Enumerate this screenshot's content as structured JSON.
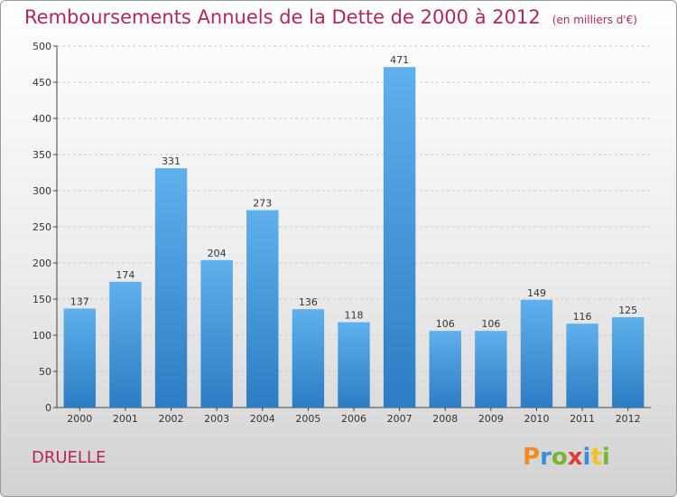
{
  "header": {
    "title": "Remboursements Annuels de la Dette de 2000 à 2012",
    "subtitle": "(en milliers d'€)"
  },
  "commune": "DRUELLE",
  "logo": {
    "letters": [
      "P",
      "r",
      "o",
      "x",
      "i",
      "t",
      "i"
    ],
    "colors": [
      "#f28c1f",
      "#3a8fd6",
      "#78b62c",
      "#e23b3b",
      "#3a8fd6",
      "#f2c21f",
      "#78b62c"
    ]
  },
  "chart_data": {
    "type": "bar",
    "title": "Remboursements Annuels de la Dette de 2000 à 2012",
    "ylabel": "",
    "xlabel": "",
    "categories": [
      "2000",
      "2001",
      "2002",
      "2003",
      "2004",
      "2005",
      "2006",
      "2007",
      "2008",
      "2009",
      "2010",
      "2011",
      "2012"
    ],
    "values": [
      137,
      174,
      331,
      204,
      273,
      136,
      118,
      471,
      106,
      106,
      149,
      116,
      125
    ],
    "ylim": [
      0,
      500
    ],
    "yticks": [
      0,
      50,
      100,
      150,
      200,
      250,
      300,
      350,
      400,
      450,
      500
    ],
    "grid": true,
    "bar_color": "#3d8fd4"
  }
}
